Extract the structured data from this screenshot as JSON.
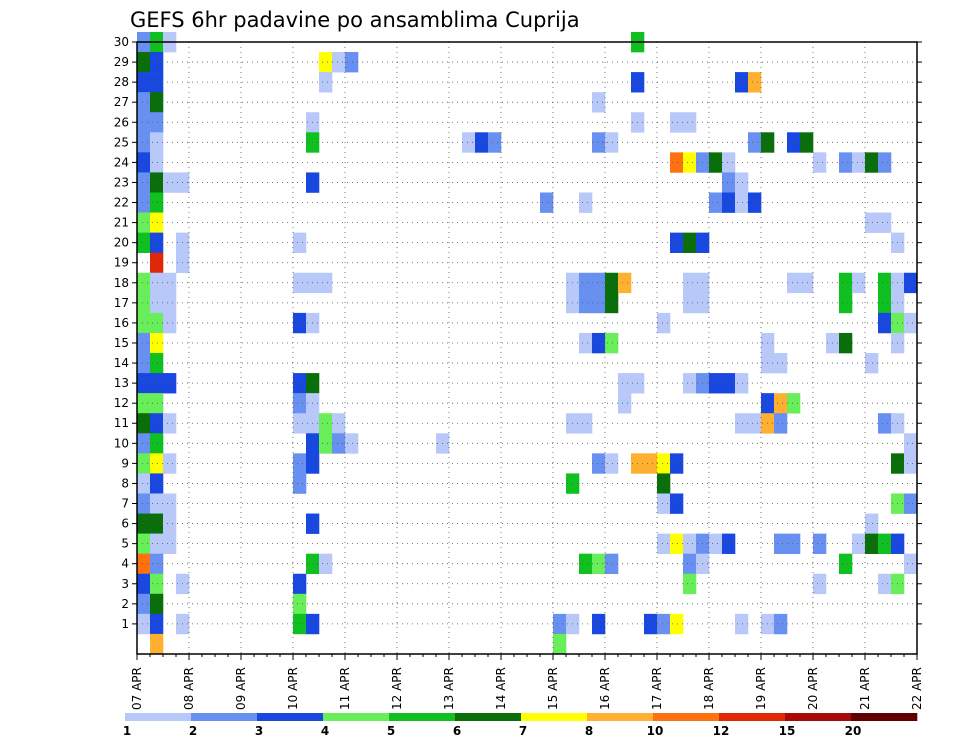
{
  "chart_data": {
    "type": "heatmap",
    "title": "GEFS 6hr padavine po ansamblima Cuprija",
    "xlabel": "",
    "ylabel": "",
    "x_tick_labels": [
      "07 APR",
      "08 APR",
      "09 APR",
      "10 APR",
      "11 APR",
      "12 APR",
      "13 APR",
      "14 APR",
      "15 APR",
      "16 APR",
      "17 APR",
      "18 APR",
      "19 APR",
      "20 APR",
      "21 APR",
      "22 APR"
    ],
    "y_tick_labels": [
      "1",
      "2",
      "3",
      "4",
      "5",
      "6",
      "7",
      "8",
      "9",
      "10",
      "11",
      "12",
      "13",
      "14",
      "15",
      "16",
      "17",
      "18",
      "19",
      "20",
      "21",
      "22",
      "23",
      "24",
      "25",
      "26",
      "27",
      "28",
      "29",
      "30"
    ],
    "xlim": [
      0,
      15
    ],
    "ylim": [
      0,
      30
    ],
    "grid": true,
    "cell_width_days": 0.25,
    "legend_levels": [
      "1",
      "2",
      "3",
      "4",
      "5",
      "6",
      "7",
      "8",
      "10",
      "12",
      "15",
      "20"
    ],
    "legend_colors": [
      "#b8c8f8",
      "#6890f0",
      "#1848e0",
      "#68ee58",
      "#10c020",
      "#0a6e0a",
      "#ffff00",
      "#ffb030",
      "#ff7010",
      "#e02808",
      "#a80808",
      "#600000"
    ],
    "cells": [
      {
        "m": 30,
        "d": 0.0,
        "c": 1
      },
      {
        "m": 30,
        "d": 0.25,
        "c": 4
      },
      {
        "m": 30,
        "d": 0.5,
        "c": 0
      },
      {
        "m": 30,
        "d": 9.5,
        "c": 4
      },
      {
        "m": 29,
        "d": 0.0,
        "c": 5
      },
      {
        "m": 29,
        "d": 0.25,
        "c": 2
      },
      {
        "m": 29,
        "d": 3.5,
        "c": 6
      },
      {
        "m": 29,
        "d": 3.75,
        "c": 0
      },
      {
        "m": 29,
        "d": 4.0,
        "c": 1
      },
      {
        "m": 28,
        "d": 0.0,
        "c": 2
      },
      {
        "m": 28,
        "d": 0.25,
        "c": 2
      },
      {
        "m": 28,
        "d": 3.5,
        "c": 0
      },
      {
        "m": 28,
        "d": 9.5,
        "c": 2
      },
      {
        "m": 28,
        "d": 11.5,
        "c": 2
      },
      {
        "m": 28,
        "d": 11.75,
        "c": 7
      },
      {
        "m": 27,
        "d": 0.0,
        "c": 1
      },
      {
        "m": 27,
        "d": 0.25,
        "c": 5
      },
      {
        "m": 27,
        "d": 8.75,
        "c": 0
      },
      {
        "m": 26,
        "d": 0.0,
        "c": 1
      },
      {
        "m": 26,
        "d": 0.25,
        "c": 1
      },
      {
        "m": 26,
        "d": 3.25,
        "c": 0
      },
      {
        "m": 26,
        "d": 9.5,
        "c": 0
      },
      {
        "m": 26,
        "d": 10.25,
        "c": 0
      },
      {
        "m": 26,
        "d": 10.5,
        "c": 0
      },
      {
        "m": 25,
        "d": 0.0,
        "c": 1
      },
      {
        "m": 25,
        "d": 0.25,
        "c": 0
      },
      {
        "m": 25,
        "d": 3.25,
        "c": 4
      },
      {
        "m": 25,
        "d": 6.25,
        "c": 0
      },
      {
        "m": 25,
        "d": 6.5,
        "c": 2
      },
      {
        "m": 25,
        "d": 6.75,
        "c": 1
      },
      {
        "m": 25,
        "d": 8.75,
        "c": 1
      },
      {
        "m": 25,
        "d": 9.0,
        "c": 0
      },
      {
        "m": 25,
        "d": 11.75,
        "c": 1
      },
      {
        "m": 25,
        "d": 12.0,
        "c": 5
      },
      {
        "m": 25,
        "d": 12.5,
        "c": 2
      },
      {
        "m": 25,
        "d": 12.75,
        "c": 5
      },
      {
        "m": 24,
        "d": 0.0,
        "c": 2
      },
      {
        "m": 24,
        "d": 0.25,
        "c": 0
      },
      {
        "m": 24,
        "d": 10.25,
        "c": 8
      },
      {
        "m": 24,
        "d": 10.5,
        "c": 6
      },
      {
        "m": 24,
        "d": 10.75,
        "c": 1
      },
      {
        "m": 24,
        "d": 11.0,
        "c": 5
      },
      {
        "m": 24,
        "d": 11.25,
        "c": 0
      },
      {
        "m": 24,
        "d": 13.0,
        "c": 0
      },
      {
        "m": 24,
        "d": 13.5,
        "c": 1
      },
      {
        "m": 24,
        "d": 13.75,
        "c": 0
      },
      {
        "m": 24,
        "d": 14.0,
        "c": 5
      },
      {
        "m": 24,
        "d": 14.25,
        "c": 1
      },
      {
        "m": 23,
        "d": 0.0,
        "c": 1
      },
      {
        "m": 23,
        "d": 0.25,
        "c": 5
      },
      {
        "m": 23,
        "d": 0.5,
        "c": 0
      },
      {
        "m": 23,
        "d": 0.75,
        "c": 0
      },
      {
        "m": 23,
        "d": 3.25,
        "c": 2
      },
      {
        "m": 23,
        "d": 11.25,
        "c": 1
      },
      {
        "m": 23,
        "d": 11.5,
        "c": 0
      },
      {
        "m": 22,
        "d": 0.0,
        "c": 1
      },
      {
        "m": 22,
        "d": 0.25,
        "c": 4
      },
      {
        "m": 22,
        "d": 7.75,
        "c": 1
      },
      {
        "m": 22,
        "d": 8.5,
        "c": 0
      },
      {
        "m": 22,
        "d": 11.0,
        "c": 1
      },
      {
        "m": 22,
        "d": 11.25,
        "c": 2
      },
      {
        "m": 22,
        "d": 11.5,
        "c": 0
      },
      {
        "m": 22,
        "d": 11.75,
        "c": 2
      },
      {
        "m": 21,
        "d": 0.0,
        "c": 3
      },
      {
        "m": 21,
        "d": 0.25,
        "c": 6
      },
      {
        "m": 21,
        "d": 14.0,
        "c": 0
      },
      {
        "m": 21,
        "d": 14.25,
        "c": 0
      },
      {
        "m": 20,
        "d": 0.0,
        "c": 4
      },
      {
        "m": 20,
        "d": 0.25,
        "c": 2
      },
      {
        "m": 20,
        "d": 0.75,
        "c": 0
      },
      {
        "m": 20,
        "d": 3.0,
        "c": 0
      },
      {
        "m": 20,
        "d": 10.25,
        "c": 2
      },
      {
        "m": 20,
        "d": 10.5,
        "c": 5
      },
      {
        "m": 20,
        "d": 10.75,
        "c": 2
      },
      {
        "m": 20,
        "d": 14.5,
        "c": 0
      },
      {
        "m": 19,
        "d": 0.25,
        "c": 9
      },
      {
        "m": 19,
        "d": 0.75,
        "c": 0
      },
      {
        "m": 18,
        "d": 0.0,
        "c": 3
      },
      {
        "m": 18,
        "d": 0.25,
        "c": 0
      },
      {
        "m": 18,
        "d": 0.5,
        "c": 0
      },
      {
        "m": 18,
        "d": 3.0,
        "c": 0
      },
      {
        "m": 18,
        "d": 3.25,
        "c": 0
      },
      {
        "m": 18,
        "d": 3.5,
        "c": 0
      },
      {
        "m": 18,
        "d": 8.25,
        "c": 0
      },
      {
        "m": 18,
        "d": 8.5,
        "c": 1
      },
      {
        "m": 18,
        "d": 8.75,
        "c": 1
      },
      {
        "m": 18,
        "d": 9.0,
        "c": 5
      },
      {
        "m": 18,
        "d": 9.25,
        "c": 7
      },
      {
        "m": 18,
        "d": 10.5,
        "c": 0
      },
      {
        "m": 18,
        "d": 10.75,
        "c": 0
      },
      {
        "m": 18,
        "d": 12.5,
        "c": 0
      },
      {
        "m": 18,
        "d": 12.75,
        "c": 0
      },
      {
        "m": 18,
        "d": 13.5,
        "c": 4
      },
      {
        "m": 18,
        "d": 13.75,
        "c": 0
      },
      {
        "m": 18,
        "d": 14.25,
        "c": 4
      },
      {
        "m": 18,
        "d": 14.5,
        "c": 0
      },
      {
        "m": 18,
        "d": 14.75,
        "c": 2
      },
      {
        "m": 17,
        "d": 0.0,
        "c": 3
      },
      {
        "m": 17,
        "d": 0.25,
        "c": 0
      },
      {
        "m": 17,
        "d": 0.5,
        "c": 0
      },
      {
        "m": 17,
        "d": 8.25,
        "c": 0
      },
      {
        "m": 17,
        "d": 8.5,
        "c": 1
      },
      {
        "m": 17,
        "d": 8.75,
        "c": 1
      },
      {
        "m": 17,
        "d": 9.0,
        "c": 5
      },
      {
        "m": 17,
        "d": 10.5,
        "c": 0
      },
      {
        "m": 17,
        "d": 10.75,
        "c": 0
      },
      {
        "m": 17,
        "d": 13.5,
        "c": 4
      },
      {
        "m": 17,
        "d": 14.25,
        "c": 4
      },
      {
        "m": 17,
        "d": 14.5,
        "c": 0
      },
      {
        "m": 16,
        "d": 0.0,
        "c": 3
      },
      {
        "m": 16,
        "d": 0.25,
        "c": 3
      },
      {
        "m": 16,
        "d": 0.5,
        "c": 0
      },
      {
        "m": 16,
        "d": 3.0,
        "c": 2
      },
      {
        "m": 16,
        "d": 3.25,
        "c": 0
      },
      {
        "m": 16,
        "d": 10.0,
        "c": 0
      },
      {
        "m": 16,
        "d": 14.25,
        "c": 2
      },
      {
        "m": 16,
        "d": 14.5,
        "c": 3
      },
      {
        "m": 16,
        "d": 14.75,
        "c": 0
      },
      {
        "m": 15,
        "d": 0.0,
        "c": 1
      },
      {
        "m": 15,
        "d": 0.25,
        "c": 6
      },
      {
        "m": 15,
        "d": 8.5,
        "c": 0
      },
      {
        "m": 15,
        "d": 8.75,
        "c": 2
      },
      {
        "m": 15,
        "d": 9.0,
        "c": 3
      },
      {
        "m": 15,
        "d": 12.0,
        "c": 0
      },
      {
        "m": 15,
        "d": 13.25,
        "c": 0
      },
      {
        "m": 15,
        "d": 13.5,
        "c": 5
      },
      {
        "m": 15,
        "d": 14.5,
        "c": 0
      },
      {
        "m": 14,
        "d": 0.0,
        "c": 1
      },
      {
        "m": 14,
        "d": 0.25,
        "c": 4
      },
      {
        "m": 14,
        "d": 12.0,
        "c": 0
      },
      {
        "m": 14,
        "d": 12.25,
        "c": 0
      },
      {
        "m": 14,
        "d": 14.0,
        "c": 0
      },
      {
        "m": 13,
        "d": 0.0,
        "c": 2
      },
      {
        "m": 13,
        "d": 0.25,
        "c": 2
      },
      {
        "m": 13,
        "d": 0.5,
        "c": 2
      },
      {
        "m": 13,
        "d": 3.0,
        "c": 2
      },
      {
        "m": 13,
        "d": 3.25,
        "c": 5
      },
      {
        "m": 13,
        "d": 9.25,
        "c": 0
      },
      {
        "m": 13,
        "d": 9.5,
        "c": 0
      },
      {
        "m": 13,
        "d": 10.5,
        "c": 0
      },
      {
        "m": 13,
        "d": 10.75,
        "c": 1
      },
      {
        "m": 13,
        "d": 11.0,
        "c": 2
      },
      {
        "m": 13,
        "d": 11.25,
        "c": 2
      },
      {
        "m": 13,
        "d": 11.5,
        "c": 0
      },
      {
        "m": 12,
        "d": 0.0,
        "c": 3
      },
      {
        "m": 12,
        "d": 0.25,
        "c": 3
      },
      {
        "m": 12,
        "d": 3.0,
        "c": 1
      },
      {
        "m": 12,
        "d": 3.25,
        "c": 0
      },
      {
        "m": 12,
        "d": 9.25,
        "c": 0
      },
      {
        "m": 12,
        "d": 12.0,
        "c": 2
      },
      {
        "m": 12,
        "d": 12.25,
        "c": 7
      },
      {
        "m": 12,
        "d": 12.5,
        "c": 3
      },
      {
        "m": 11,
        "d": 0.0,
        "c": 5
      },
      {
        "m": 11,
        "d": 0.25,
        "c": 2
      },
      {
        "m": 11,
        "d": 0.5,
        "c": 0
      },
      {
        "m": 11,
        "d": 3.0,
        "c": 0
      },
      {
        "m": 11,
        "d": 3.25,
        "c": 0
      },
      {
        "m": 11,
        "d": 3.5,
        "c": 3
      },
      {
        "m": 11,
        "d": 3.75,
        "c": 0
      },
      {
        "m": 11,
        "d": 8.25,
        "c": 0
      },
      {
        "m": 11,
        "d": 8.5,
        "c": 0
      },
      {
        "m": 11,
        "d": 11.5,
        "c": 0
      },
      {
        "m": 11,
        "d": 11.75,
        "c": 0
      },
      {
        "m": 11,
        "d": 12.0,
        "c": 7
      },
      {
        "m": 11,
        "d": 12.25,
        "c": 1
      },
      {
        "m": 11,
        "d": 14.25,
        "c": 1
      },
      {
        "m": 11,
        "d": 14.5,
        "c": 0
      },
      {
        "m": 10,
        "d": 0.0,
        "c": 1
      },
      {
        "m": 10,
        "d": 0.25,
        "c": 4
      },
      {
        "m": 10,
        "d": 3.25,
        "c": 2
      },
      {
        "m": 10,
        "d": 3.5,
        "c": 3
      },
      {
        "m": 10,
        "d": 3.75,
        "c": 1
      },
      {
        "m": 10,
        "d": 4.0,
        "c": 0
      },
      {
        "m": 10,
        "d": 5.75,
        "c": 0
      },
      {
        "m": 10,
        "d": 14.75,
        "c": 0
      },
      {
        "m": 9,
        "d": 0.0,
        "c": 3
      },
      {
        "m": 9,
        "d": 0.25,
        "c": 6
      },
      {
        "m": 9,
        "d": 0.5,
        "c": 0
      },
      {
        "m": 9,
        "d": 3.0,
        "c": 1
      },
      {
        "m": 9,
        "d": 3.25,
        "c": 2
      },
      {
        "m": 9,
        "d": 8.75,
        "c": 1
      },
      {
        "m": 9,
        "d": 9.0,
        "c": 0
      },
      {
        "m": 9,
        "d": 9.5,
        "c": 7
      },
      {
        "m": 9,
        "d": 9.75,
        "c": 7
      },
      {
        "m": 9,
        "d": 10.0,
        "c": 6
      },
      {
        "m": 9,
        "d": 10.25,
        "c": 2
      },
      {
        "m": 9,
        "d": 14.5,
        "c": 5
      },
      {
        "m": 9,
        "d": 14.75,
        "c": 0
      },
      {
        "m": 8,
        "d": 0.0,
        "c": 0
      },
      {
        "m": 8,
        "d": 0.25,
        "c": 2
      },
      {
        "m": 8,
        "d": 3.0,
        "c": 1
      },
      {
        "m": 8,
        "d": 8.25,
        "c": 4
      },
      {
        "m": 8,
        "d": 10.0,
        "c": 5
      },
      {
        "m": 7,
        "d": 0.0,
        "c": 1
      },
      {
        "m": 7,
        "d": 0.25,
        "c": 0
      },
      {
        "m": 7,
        "d": 0.5,
        "c": 0
      },
      {
        "m": 7,
        "d": 10.0,
        "c": 0
      },
      {
        "m": 7,
        "d": 10.25,
        "c": 2
      },
      {
        "m": 7,
        "d": 14.5,
        "c": 3
      },
      {
        "m": 7,
        "d": 14.75,
        "c": 1
      },
      {
        "m": 6,
        "d": 0.0,
        "c": 5
      },
      {
        "m": 6,
        "d": 0.25,
        "c": 5
      },
      {
        "m": 6,
        "d": 0.5,
        "c": 0
      },
      {
        "m": 6,
        "d": 3.25,
        "c": 2
      },
      {
        "m": 6,
        "d": 14.0,
        "c": 0
      },
      {
        "m": 5,
        "d": 0.0,
        "c": 3
      },
      {
        "m": 5,
        "d": 0.25,
        "c": 0
      },
      {
        "m": 5,
        "d": 0.5,
        "c": 0
      },
      {
        "m": 5,
        "d": 10.0,
        "c": 0
      },
      {
        "m": 5,
        "d": 10.25,
        "c": 6
      },
      {
        "m": 5,
        "d": 10.5,
        "c": 0
      },
      {
        "m": 5,
        "d": 10.75,
        "c": 1
      },
      {
        "m": 5,
        "d": 11.0,
        "c": 0
      },
      {
        "m": 5,
        "d": 11.25,
        "c": 2
      },
      {
        "m": 5,
        "d": 12.25,
        "c": 1
      },
      {
        "m": 5,
        "d": 12.5,
        "c": 1
      },
      {
        "m": 5,
        "d": 13.0,
        "c": 1
      },
      {
        "m": 5,
        "d": 13.75,
        "c": 0
      },
      {
        "m": 5,
        "d": 14.0,
        "c": 5
      },
      {
        "m": 5,
        "d": 14.25,
        "c": 4
      },
      {
        "m": 5,
        "d": 14.5,
        "c": 2
      },
      {
        "m": 4,
        "d": 0.0,
        "c": 8
      },
      {
        "m": 4,
        "d": 0.25,
        "c": 1
      },
      {
        "m": 4,
        "d": 3.25,
        "c": 4
      },
      {
        "m": 4,
        "d": 3.5,
        "c": 0
      },
      {
        "m": 4,
        "d": 8.5,
        "c": 4
      },
      {
        "m": 4,
        "d": 8.75,
        "c": 3
      },
      {
        "m": 4,
        "d": 9.0,
        "c": 1
      },
      {
        "m": 4,
        "d": 10.5,
        "c": 1
      },
      {
        "m": 4,
        "d": 10.75,
        "c": 0
      },
      {
        "m": 4,
        "d": 13.5,
        "c": 4
      },
      {
        "m": 4,
        "d": 14.75,
        "c": 0
      },
      {
        "m": 3,
        "d": 0.0,
        "c": 2
      },
      {
        "m": 3,
        "d": 0.25,
        "c": 3
      },
      {
        "m": 3,
        "d": 0.75,
        "c": 0
      },
      {
        "m": 3,
        "d": 3.0,
        "c": 2
      },
      {
        "m": 3,
        "d": 10.5,
        "c": 3
      },
      {
        "m": 3,
        "d": 13.0,
        "c": 0
      },
      {
        "m": 3,
        "d": 14.25,
        "c": 0
      },
      {
        "m": 3,
        "d": 14.5,
        "c": 3
      },
      {
        "m": 2,
        "d": 0.0,
        "c": 1
      },
      {
        "m": 2,
        "d": 0.25,
        "c": 5
      },
      {
        "m": 2,
        "d": 3.0,
        "c": 3
      },
      {
        "m": 1,
        "d": 0.0,
        "c": 0
      },
      {
        "m": 1,
        "d": 0.25,
        "c": 2
      },
      {
        "m": 1,
        "d": 0.75,
        "c": 0
      },
      {
        "m": 1,
        "d": 3.0,
        "c": 4
      },
      {
        "m": 1,
        "d": 3.25,
        "c": 2
      },
      {
        "m": 1,
        "d": 8.0,
        "c": 1
      },
      {
        "m": 1,
        "d": 8.25,
        "c": 0
      },
      {
        "m": 1,
        "d": 8.75,
        "c": 2
      },
      {
        "m": 1,
        "d": 9.75,
        "c": 2
      },
      {
        "m": 1,
        "d": 10.0,
        "c": 1
      },
      {
        "m": 1,
        "d": 10.25,
        "c": 6
      },
      {
        "m": 1,
        "d": 11.5,
        "c": 0
      },
      {
        "m": 1,
        "d": 12.0,
        "c": 0
      },
      {
        "m": 1,
        "d": 12.25,
        "c": 1
      },
      {
        "m": 0,
        "d": 0.25,
        "c": 7
      },
      {
        "m": 0,
        "d": 8.0,
        "c": 3
      }
    ]
  }
}
